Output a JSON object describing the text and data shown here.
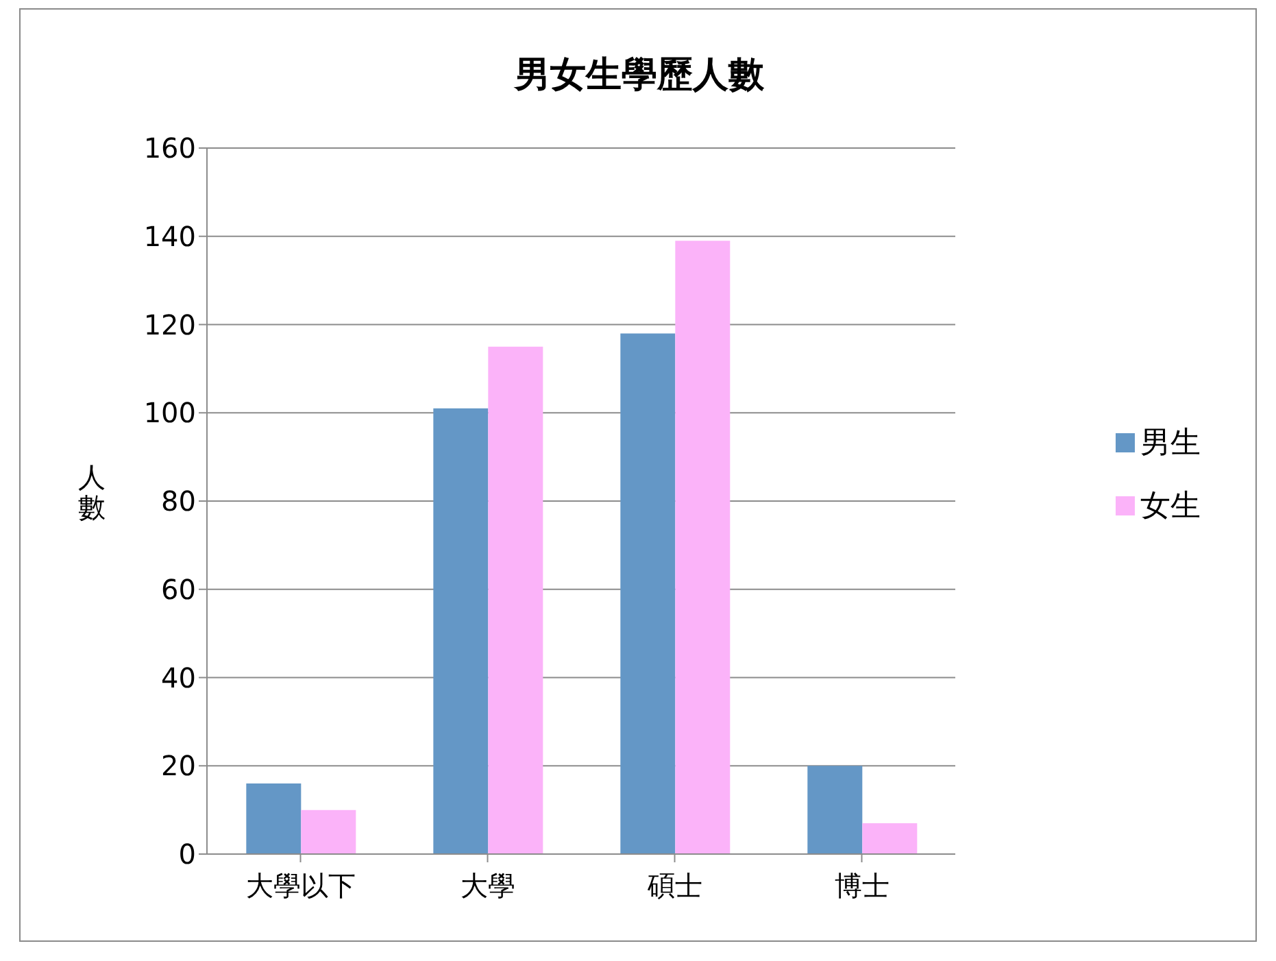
{
  "chart_data": {
    "type": "bar",
    "title": "男女生學歷人數",
    "ylabel": "人數",
    "categories": [
      "大學以下",
      "大學",
      "碩士",
      "博士"
    ],
    "series": [
      {
        "name": "男生",
        "color": "#6497c6",
        "values": [
          16,
          101,
          118,
          20
        ]
      },
      {
        "name": "女生",
        "color": "#fbb3f9",
        "values": [
          10,
          115,
          139,
          7
        ]
      }
    ],
    "ylim": [
      0,
      160
    ],
    "yticks": [
      0,
      20,
      40,
      60,
      80,
      100,
      120,
      140,
      160
    ],
    "grid": "y",
    "legend": "right"
  }
}
